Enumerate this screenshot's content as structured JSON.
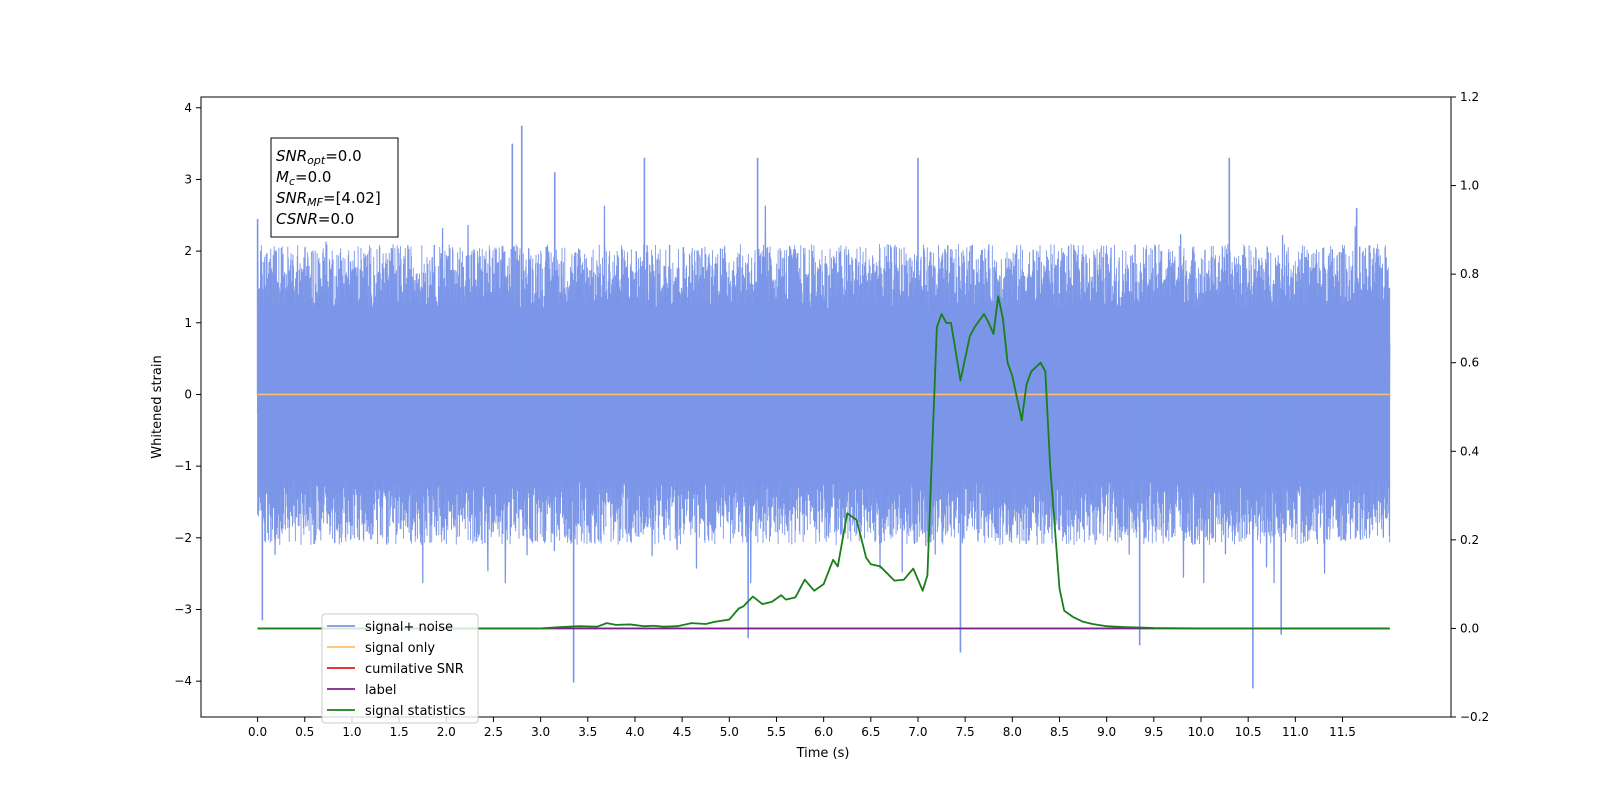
{
  "chart_data": {
    "type": "line",
    "xlabel": "Time (s)",
    "ylabel": "Whitened strain",
    "xlim": [
      -0.6,
      12.65
    ],
    "ylim": [
      -4.5,
      4.15
    ],
    "y2lim": [
      -0.2,
      1.2
    ],
    "x_ticks": [
      0.0,
      0.5,
      1.0,
      1.5,
      2.0,
      2.5,
      3.0,
      3.5,
      4.0,
      4.5,
      5.0,
      5.5,
      6.0,
      6.5,
      7.0,
      7.5,
      8.0,
      8.5,
      9.0,
      9.5,
      10.0,
      10.5,
      11.0,
      11.5
    ],
    "x_tick_labels": [
      "0.0",
      "0.5",
      "1.0",
      "1.5",
      "2.0",
      "2.5",
      "3.0",
      "3.5",
      "4.0",
      "4.5",
      "5.0",
      "5.5",
      "6.0",
      "6.5",
      "7.0",
      "7.5",
      "8.0",
      "8.5",
      "9.0",
      "9.5",
      "10.0",
      "10.5",
      "11.0",
      "11.5"
    ],
    "y_ticks": [
      4,
      3,
      2,
      1,
      0,
      -1,
      -2,
      -3,
      -4
    ],
    "y_tick_labels": [
      "4",
      "3",
      "2",
      "1",
      "0",
      "−1",
      "−2",
      "−3",
      "−4"
    ],
    "y2_ticks": [
      1.2,
      1.0,
      0.8,
      0.6,
      0.4,
      0.2,
      0.0,
      -0.2
    ],
    "y2_tick_labels": [
      "1.2",
      "1.0",
      "0.8",
      "0.6",
      "0.4",
      "0.2",
      "0.0",
      "−0.2"
    ],
    "grid": false,
    "legend_placement": "lower-left",
    "series": [
      {
        "name": "signal+ noise",
        "axis": "left",
        "color": "#7b96e8",
        "style": "dense noise band, roughly ±2 with spikes to about ±3.5 (upward outlier near 2.8 s reaching 3.75; downward outliers near 3.4 s and 10.5 s reaching about -4.1)",
        "x_range": [
          0.0,
          12.0
        ],
        "spikes": [
          [
            0.0,
            2.45
          ],
          [
            0.05,
            -3.15
          ],
          [
            2.8,
            3.75
          ],
          [
            2.7,
            3.5
          ],
          [
            3.35,
            -4.02
          ],
          [
            3.15,
            3.1
          ],
          [
            4.1,
            3.3
          ],
          [
            5.2,
            -3.4
          ],
          [
            5.3,
            3.3
          ],
          [
            7.45,
            -3.6
          ],
          [
            7.0,
            3.3
          ],
          [
            9.35,
            -3.5
          ],
          [
            10.3,
            3.3
          ],
          [
            10.55,
            -4.1
          ],
          [
            10.85,
            -3.35
          ],
          [
            11.65,
            2.6
          ]
        ],
        "amplitude_typical": 2.1
      },
      {
        "name": "signal only",
        "axis": "left",
        "color": "#ffbf69",
        "x": [
          0.0,
          12.0
        ],
        "y": [
          0.0,
          0.0
        ]
      },
      {
        "name": "cumilative SNR",
        "axis": "right",
        "color": "#e41a1c",
        "x": [
          0.0,
          12.0
        ],
        "y": [
          0.0,
          0.0
        ]
      },
      {
        "name": "label",
        "axis": "right",
        "color": "#7b1f8c",
        "x": [
          1.0,
          12.0
        ],
        "y": [
          0.0,
          0.0
        ]
      },
      {
        "name": "signal statistics",
        "axis": "right",
        "color": "#1a7f1a",
        "x": [
          0.0,
          2.0,
          3.0,
          3.2,
          3.4,
          3.6,
          3.7,
          3.8,
          3.95,
          4.1,
          4.2,
          4.3,
          4.45,
          4.6,
          4.75,
          4.85,
          5.0,
          5.1,
          5.15,
          5.25,
          5.35,
          5.45,
          5.55,
          5.6,
          5.7,
          5.8,
          5.9,
          6.0,
          6.1,
          6.15,
          6.25,
          6.35,
          6.45,
          6.5,
          6.6,
          6.75,
          6.85,
          6.95,
          7.05,
          7.1,
          7.2,
          7.25,
          7.3,
          7.35,
          7.45,
          7.55,
          7.6,
          7.65,
          7.7,
          7.75,
          7.8,
          7.85,
          7.9,
          7.95,
          8.0,
          8.1,
          8.15,
          8.2,
          8.3,
          8.35,
          8.4,
          8.5,
          8.55,
          8.65,
          8.75,
          8.85,
          9.0,
          9.2,
          9.5,
          10.0,
          12.0
        ],
        "y": [
          0.0,
          0.0,
          0.0,
          0.003,
          0.005,
          0.004,
          0.012,
          0.008,
          0.009,
          0.005,
          0.006,
          0.004,
          0.005,
          0.012,
          0.01,
          0.015,
          0.02,
          0.045,
          0.05,
          0.072,
          0.055,
          0.06,
          0.075,
          0.065,
          0.07,
          0.11,
          0.085,
          0.1,
          0.155,
          0.14,
          0.26,
          0.245,
          0.16,
          0.145,
          0.14,
          0.108,
          0.11,
          0.135,
          0.085,
          0.12,
          0.68,
          0.71,
          0.69,
          0.69,
          0.56,
          0.66,
          0.68,
          0.695,
          0.71,
          0.69,
          0.665,
          0.75,
          0.7,
          0.6,
          0.57,
          0.47,
          0.55,
          0.58,
          0.6,
          0.58,
          0.37,
          0.09,
          0.04,
          0.025,
          0.015,
          0.01,
          0.005,
          0.003,
          0.001,
          0.0,
          0.0
        ]
      }
    ],
    "info_box": {
      "lines": [
        {
          "main": "SNR",
          "sub": "opt",
          "value": "=0.0"
        },
        {
          "main": "M",
          "sub": "c",
          "value": "=0.0"
        },
        {
          "main": "SNR",
          "sub": "MF",
          "value": "=[4.02]"
        },
        {
          "main": "CSNR",
          "sub": "",
          "value": "=0.0"
        }
      ]
    }
  }
}
